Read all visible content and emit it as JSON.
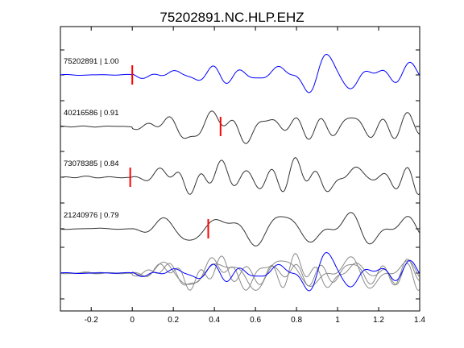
{
  "chart_data": {
    "type": "line",
    "title": "75202891.NC.HLP.EHZ",
    "xlabel": "",
    "ylabel": "",
    "xlim": [
      -0.35,
      1.4
    ],
    "x_ticks": [
      -0.2,
      0,
      0.2,
      0.4,
      0.6,
      0.8,
      1,
      1.2,
      1.4
    ],
    "x_tick_labels": [
      "-0.2",
      "0",
      "0.2",
      "0.4",
      "0.6",
      "0.8",
      "1",
      "1.2",
      "1.4"
    ],
    "grid": false,
    "legend": "none",
    "colors": {
      "reference": "#0000ff",
      "trace": "#333333",
      "stack_other": "#8a8a8a",
      "pick": "#ff0000",
      "axis": "#000000"
    },
    "traces": [
      {
        "label": "75202891 | 1.00",
        "pick_time": 0.0,
        "color": "#0000ff"
      },
      {
        "label": "40216586 | 0.91",
        "pick_time": 0.43,
        "color": "#333333"
      },
      {
        "label": "73078385 | 0.84",
        "pick_time": -0.01,
        "color": "#333333"
      },
      {
        "label": "21240976 | 0.79",
        "pick_time": 0.37,
        "color": "#333333"
      }
    ],
    "stack": {
      "label": ""
    }
  }
}
